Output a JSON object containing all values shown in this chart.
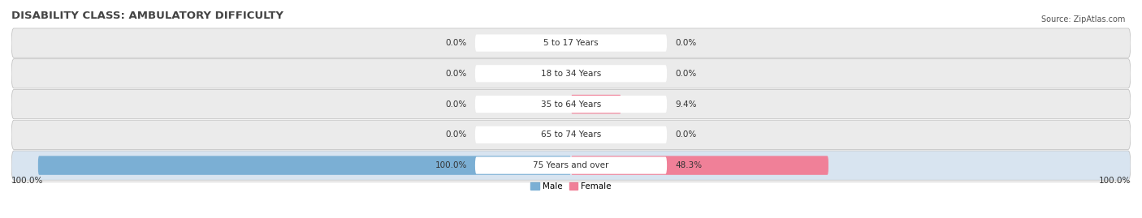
{
  "title": "DISABILITY CLASS: AMBULATORY DIFFICULTY",
  "source": "Source: ZipAtlas.com",
  "categories": [
    "5 to 17 Years",
    "18 to 34 Years",
    "35 to 64 Years",
    "65 to 74 Years",
    "75 Years and over"
  ],
  "male_values": [
    0.0,
    0.0,
    0.0,
    0.0,
    100.0
  ],
  "female_values": [
    0.0,
    0.0,
    9.4,
    0.0,
    48.3
  ],
  "male_color": "#7BAFD4",
  "female_color": "#F08098",
  "row_bg_color_light": "#EBEBEB",
  "row_bg_color_dark": "#D8E4F0",
  "bar_height": 0.62,
  "max_value": 100.0,
  "x_left_label": "100.0%",
  "x_right_label": "100.0%",
  "legend_male": "Male",
  "legend_female": "Female",
  "title_fontsize": 9.5,
  "label_fontsize": 7.5,
  "category_fontsize": 7.5,
  "axis_label_fontsize": 7.5,
  "source_fontsize": 7,
  "bg_color": "#ffffff",
  "separator_color": "#CCCCCC"
}
